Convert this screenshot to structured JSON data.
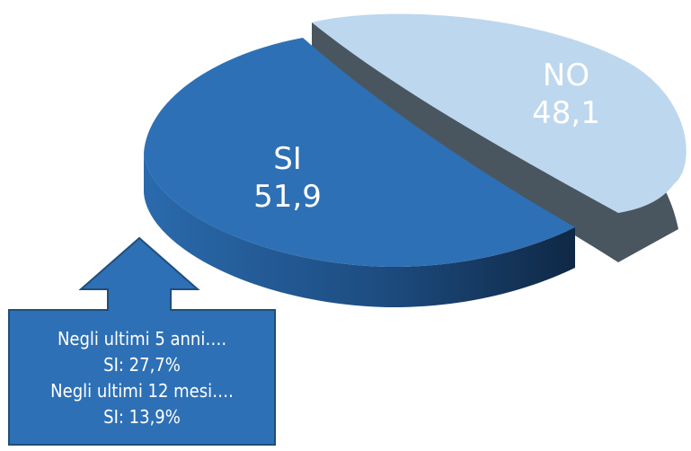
{
  "chart_data": {
    "type": "pie",
    "title": "",
    "slices": [
      {
        "label": "SI",
        "value": 51.9,
        "value_text": "51,9",
        "color": "#2e70b5"
      },
      {
        "label": "NO",
        "value": 48.1,
        "value_text": "48,1",
        "color": "#bdd7ee"
      }
    ],
    "annotation": {
      "lines": [
        "Negli ultimi 5 anni….",
        "SI:  27,7%",
        "Negli ultimi 12 mesi….",
        "SI: 13,9%"
      ],
      "points_to": "SI",
      "color": "#2e70b5"
    }
  }
}
